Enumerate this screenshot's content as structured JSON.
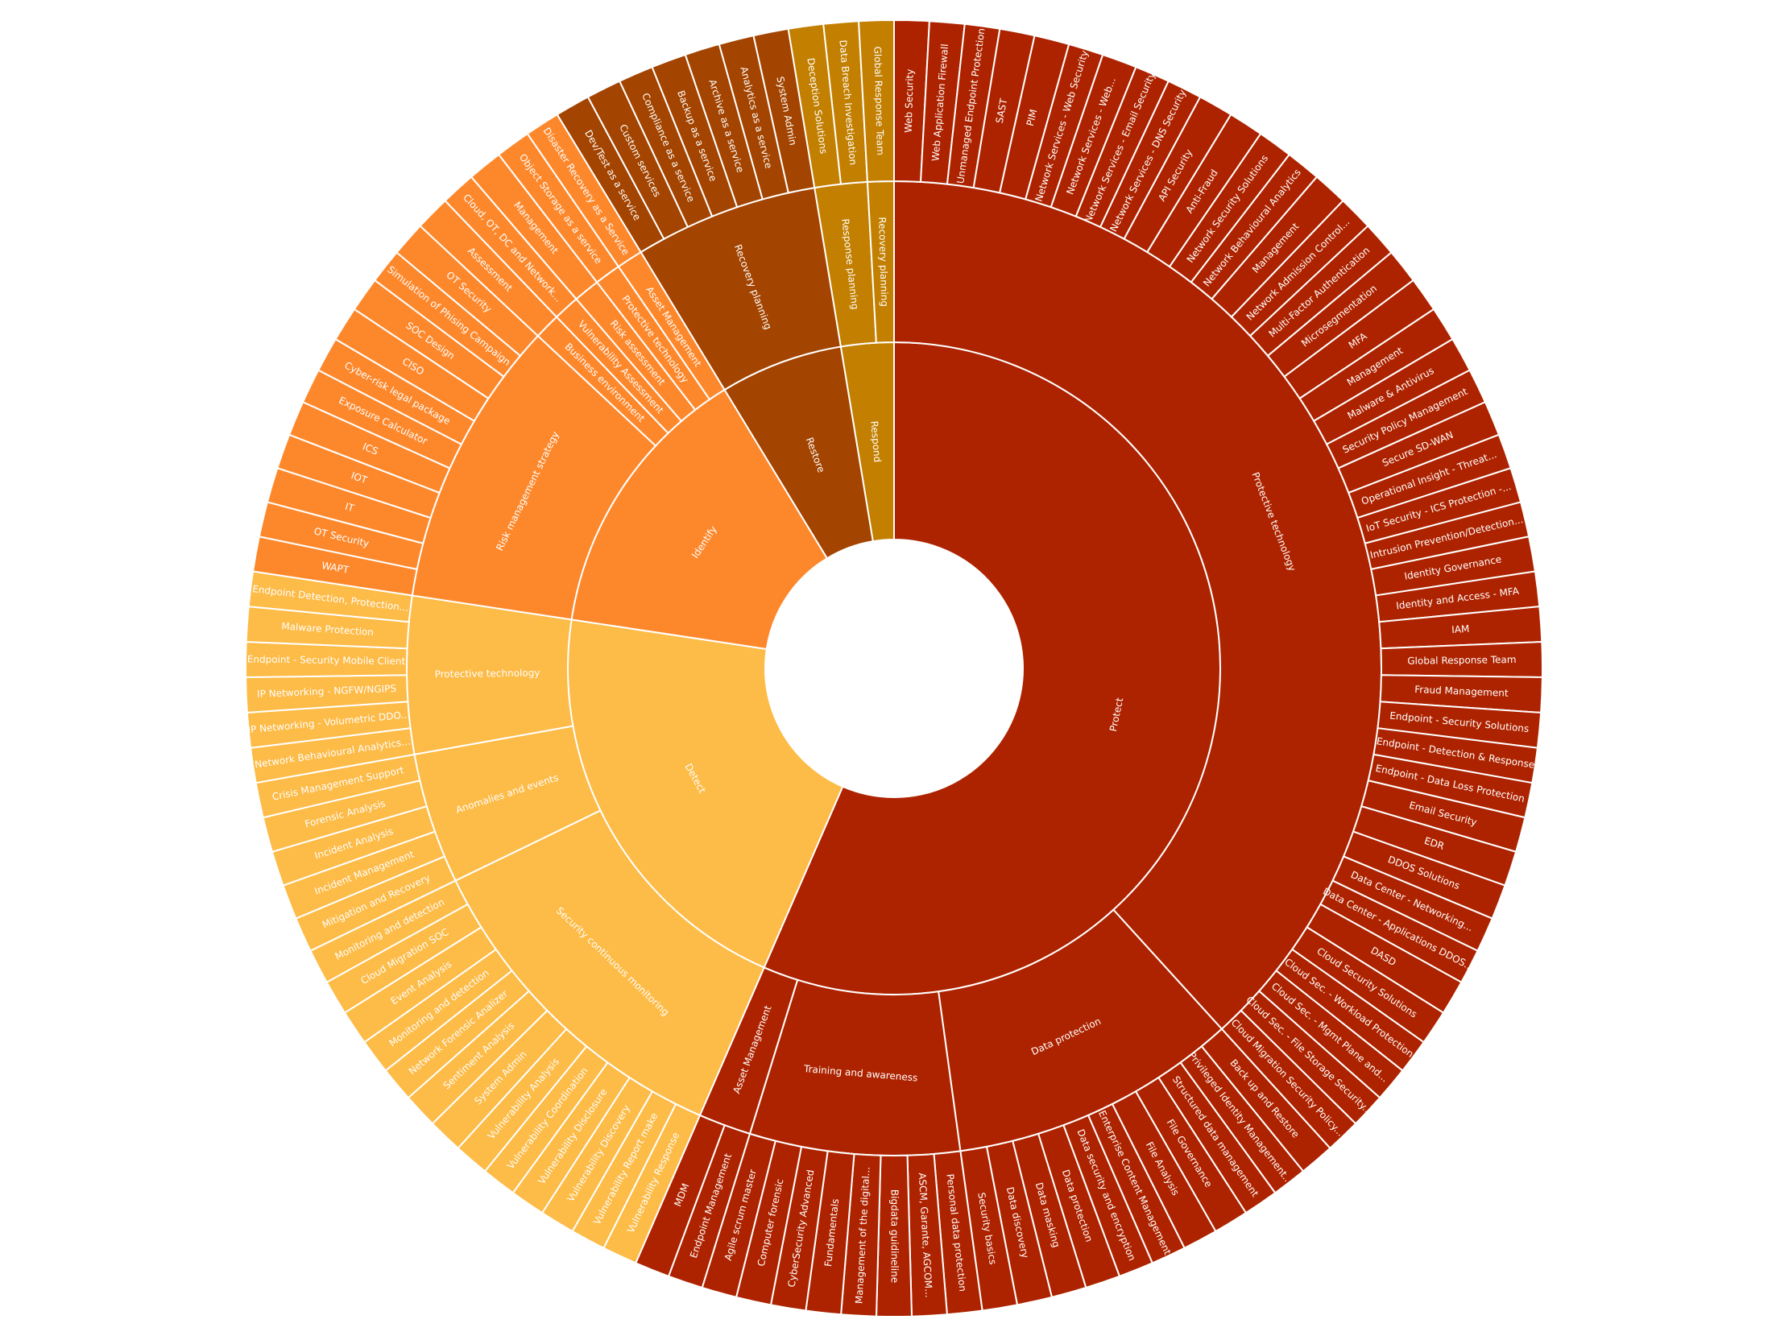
{
  "chart_data": {
    "type": "sunburst",
    "title": "",
    "colors": {
      "Protect": "#ad2300",
      "Identify": "#fd882c",
      "Detect": "#fdbb47",
      "Restore": "#a34400",
      "Respond": "#c27f00"
    },
    "categories": [
      {
        "name": "Protect",
        "children": [
          {
            "name": "Protective technology",
            "leaves": [
              "Web Security",
              "Web Application Firewall",
              "Unmanaged Endpoint Protection",
              "SAST",
              "PIM",
              "Network Services - Web Security",
              "Network Services - Web...",
              "Network Services - Email Security",
              "Network Services - DNS Security",
              "API Security",
              "Anti-Fraud",
              "Network Security Solutions",
              "Network Behavioural Analytics",
              "Management",
              "Network Admission Control...",
              "Multi-Factor Authentication",
              "Microsegmentation",
              "MFA",
              "Management",
              "Malware & Antivirus",
              "Security Policy Management",
              "Secure SD-WAN",
              "Operational Insight - Threat...",
              "IoT Security - ICS Protection -...",
              "Intrusion Prevention/Detection...",
              "Identity Governance",
              "Identity and Access - MFA",
              "IAM",
              "Global Response Team",
              "Fraud Management",
              "Endpoint - Security Solutions",
              "Endpoint - Detection & Response",
              "Endpoint - Data Loss Protection",
              "Email Security",
              "EDR",
              "DDOS Solutions",
              "Data Center - Networking...",
              "Data Center - Applications DDOS...",
              "DASD",
              "Cloud Security Solutions",
              "Cloud Sec. - Workload Protection",
              "Cloud Sec. - Mgmt Plane and...",
              "Cloud Sec. - File Storage Security...",
              "Cloud Migration Security Policy..."
            ]
          },
          {
            "name": "Data protection",
            "leaves": [
              "Back up and Restore",
              "Privileged Identity Management...",
              "Structured data management",
              "File Governance",
              "File Analysis",
              "Enterprise Content Management",
              "Data security and encryption",
              "Data protection",
              "Data masking",
              "Data discovery",
              "Security basics"
            ]
          },
          {
            "name": "Training and awareness",
            "leaves": [
              "Personal data protection",
              "ASCM, Garante, AGCOM...",
              "Bigdata guidineline",
              "Management of the digital...",
              "Fundamentals",
              "CyberSecurity Advanced",
              "Computer forensic",
              "Agile scrum master"
            ]
          },
          {
            "name": "Asset Management",
            "leaves": [
              "Endpoint Management",
              "MDM"
            ]
          }
        ]
      },
      {
        "name": "Detect",
        "children": [
          {
            "name": "Security continuous monitoring",
            "leaves": [
              "Vulnerability Response",
              "Vulnerability Report make",
              "Vulnerability Discovery",
              "Vulnerability Disclosure",
              "Vulnerability Coordination",
              "Vulnerability Analysis",
              "System Admin",
              "Sentiment Analysis",
              "Network Forensic Analizer",
              "Monitoring and detection",
              "Event Analysis",
              "Cloud Migration SOC",
              "Monitoring and detection"
            ]
          },
          {
            "name": "Anomalies and events",
            "leaves": [
              "Mitigation and Recovery",
              "Incident Management",
              "Incident Analysis",
              "Forensic Analysis",
              "Crisis Management Support"
            ]
          },
          {
            "name": "Protective technology",
            "leaves": [
              "Network Behavioural Analytics...",
              "IP Networking - Volumetric DDO...",
              "IP Networking - NGFW/NGIPS",
              "Endpoint - Security Mobile Client",
              "Malware Protection",
              "Endpoint Detection, Protection..."
            ]
          }
        ]
      },
      {
        "name": "Identify",
        "children": [
          {
            "name": "Risk management strategy",
            "leaves": [
              "WAPT",
              "OT Security",
              "IT",
              "IOT",
              "ICS",
              "Exposure Calculator",
              "Cyber-risk legal package",
              "CISO",
              "SOC Design",
              "Simulation of Phising Campaign",
              "OT Security"
            ]
          },
          {
            "name": "Business environment",
            "leaves": [
              "Assessment"
            ]
          },
          {
            "name": "Vulnerability Assessment",
            "leaves": [
              "Cloud, OT, DC and Network..."
            ]
          },
          {
            "name": "Risk assessment",
            "leaves": [
              "Management"
            ]
          },
          {
            "name": "Protective technology",
            "leaves": [
              "Object Storage as a service"
            ]
          },
          {
            "name": "Asset Management",
            "leaves": [
              "Disaster Recovery as a Service"
            ]
          }
        ]
      },
      {
        "name": "Restore",
        "children": [
          {
            "name": "Recovery planning",
            "leaves": [
              "Dev/Test as a service",
              "Custom services",
              "Compliance as a service",
              "Backup as a service",
              "Archive as a service",
              "Analytics as a service",
              "System Admin"
            ]
          }
        ]
      },
      {
        "name": "Respond",
        "children": [
          {
            "name": "Response planning",
            "leaves": [
              "Deception Solutions",
              "Data Breach Investigation"
            ]
          },
          {
            "name": "Recovery planning",
            "leaves": [
              "Global Response Team"
            ]
          }
        ]
      }
    ]
  }
}
